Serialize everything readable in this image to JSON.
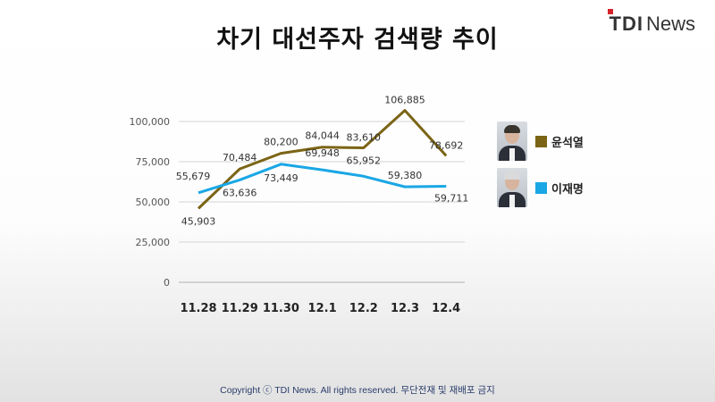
{
  "title": "차기 대선주자 검색량 추이",
  "logo": {
    "brand": "TDI",
    "suffix": "News"
  },
  "footer": "Copyright ⓒ TDI News. All rights reserved. 무단전재 및 재배포 금지",
  "colors": {
    "series1": "#7b6415",
    "series2": "#1aa7e5",
    "grid": "#d4d4d4"
  },
  "legend": [
    {
      "name": "윤석열",
      "photo": "person-photo-icon"
    },
    {
      "name": "이재명",
      "photo": "person-photo-icon"
    }
  ],
  "chart_data": {
    "type": "line",
    "title": "차기 대선주자 검색량 추이",
    "x": [
      "11.28",
      "11.29",
      "11.30",
      "12.1",
      "12.2",
      "12.3",
      "12.4"
    ],
    "y_ticks": [
      "0",
      "25,000",
      "50,000",
      "75,000",
      "100,000"
    ],
    "ylim": [
      0,
      110000
    ],
    "grid": true,
    "legend_position": "right",
    "series": [
      {
        "name": "윤석열",
        "values": [
          45903,
          70484,
          80200,
          84044,
          83610,
          106885,
          78692
        ],
        "labels": [
          "45,903",
          "70,484",
          "80,200",
          "84,044",
          "83,610",
          "106,885",
          "78,692"
        ]
      },
      {
        "name": "이재명",
        "values": [
          55679,
          63636,
          73449,
          69948,
          65952,
          59380,
          59711
        ],
        "labels": [
          "55,679",
          "63,636",
          "73,449",
          "69,948",
          "65,952",
          "59,380",
          "59,711"
        ]
      }
    ]
  }
}
